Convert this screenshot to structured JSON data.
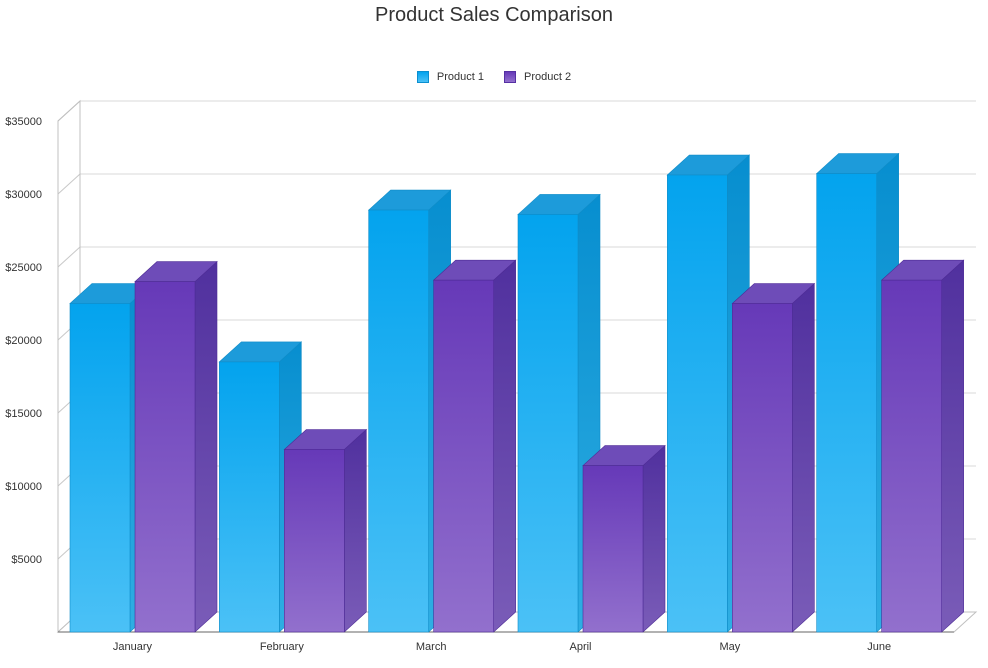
{
  "chart_data": {
    "type": "bar",
    "title": "Product Sales Comparison",
    "xlabel": "",
    "ylabel": "",
    "categories": [
      "January",
      "February",
      "March",
      "April",
      "May",
      "June"
    ],
    "series": [
      {
        "name": "Product 1",
        "values": [
          22500,
          18500,
          28900,
          28600,
          31300,
          31400
        ]
      },
      {
        "name": "Product 2",
        "values": [
          24000,
          12500,
          24100,
          11400,
          22500,
          24100
        ]
      }
    ],
    "ylim": [
      0,
      35000
    ],
    "yticks": [
      5000,
      10000,
      15000,
      20000,
      25000,
      30000,
      35000
    ],
    "ytick_labels": [
      "$5000",
      "$10000",
      "$15000",
      "$20000",
      "$25000",
      "$30000",
      "$35000"
    ],
    "grid": true,
    "legend_position": "top-center",
    "colors": {
      "Product 1": {
        "top": "#03A3EE",
        "bottom": "#4BC1F6",
        "side": "#0A8FD0",
        "cap": "#1D9BDA"
      },
      "Product 2": {
        "top": "#6639B8",
        "bottom": "#9270CD",
        "side": "#5530A3",
        "cap": "#6E4CB8"
      }
    }
  }
}
